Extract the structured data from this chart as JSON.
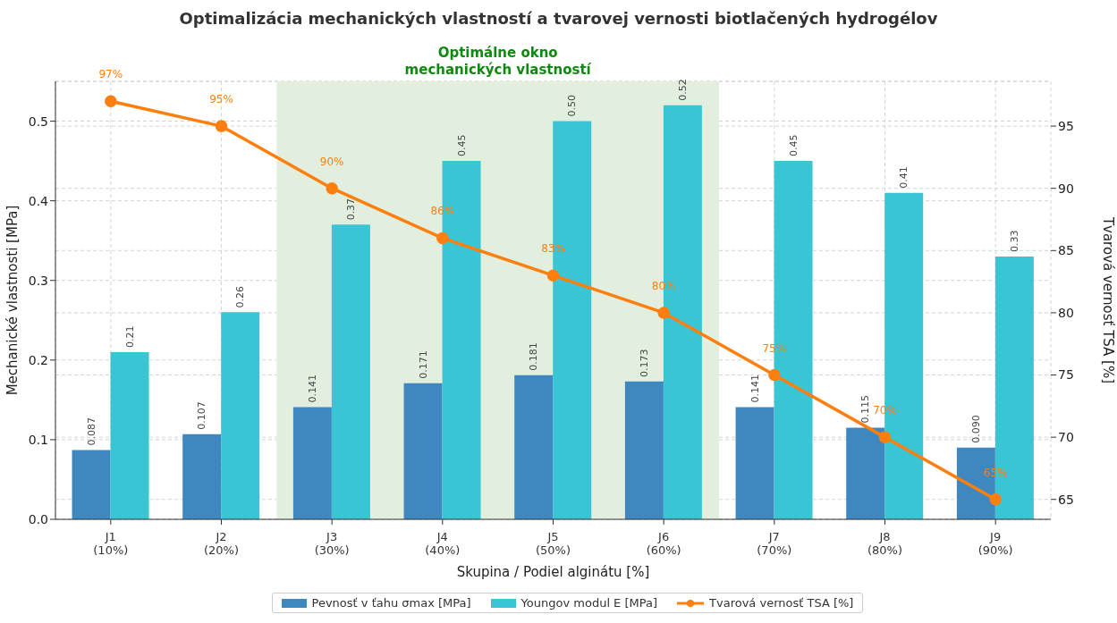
{
  "chart_data": {
    "type": "bar",
    "title": "Optimalizácia mechanických vlastností a tvarovej vernosti biotlačených hydrogélov",
    "xlabel": "Skupina / Podiel alginátu [%]",
    "ylabel": "Mechanické vlastnosti [MPa]",
    "y2label": "Tvarová vernosť TSA [%]",
    "categories": [
      "J1\n(10%)",
      "J2\n(20%)",
      "J3\n(30%)",
      "J4\n(40%)",
      "J5\n(50%)",
      "J6\n(60%)",
      "J7\n(70%)",
      "J8\n(80%)",
      "J9\n(90%)"
    ],
    "series": [
      {
        "name": "Pevnosť v ťahu σmax [MPa]",
        "color": "#3f87bf",
        "values": [
          0.087,
          0.107,
          0.141,
          0.171,
          0.181,
          0.173,
          0.141,
          0.115,
          0.09
        ],
        "value_labels": [
          "0.087",
          "0.107",
          "0.141",
          "0.171",
          "0.181",
          "0.173",
          "0.141",
          "0.115",
          "0.090"
        ]
      },
      {
        "name": "Youngov modul E [MPa]",
        "color": "#3ac5d5",
        "values": [
          0.21,
          0.26,
          0.37,
          0.45,
          0.5,
          0.52,
          0.45,
          0.41,
          0.33
        ],
        "value_labels": [
          "0.21",
          "0.26",
          "0.37",
          "0.45",
          "0.50",
          "0.52",
          "0.45",
          "0.41",
          "0.33"
        ]
      },
      {
        "name": "Tvarová vernosť TSA [%]",
        "type": "line",
        "axis": "y2",
        "color": "#ff7f0e",
        "marker": "circle",
        "line_style": "solid",
        "values": [
          97,
          95,
          90,
          86,
          83,
          80,
          75,
          70,
          65
        ],
        "value_labels": [
          "97%",
          "95%",
          "90%",
          "86%",
          "83%",
          "80%",
          "75%",
          "70%",
          "65%"
        ]
      }
    ],
    "ylim": [
      0,
      0.55
    ],
    "yticks": [
      {
        "value": 0,
        "label": "0.0"
      },
      0.1,
      0.2,
      0.3,
      0.4,
      0.5
    ],
    "y2lim": [
      63.4,
      98.6
    ],
    "y2ticks": [
      65,
      70,
      75,
      80,
      85,
      90,
      95
    ],
    "bands": [
      {
        "axis": "x",
        "from": "J3\n(30%)",
        "to": "J6\n(60%)",
        "label": "Optimálne okno\nmechanických vlastností",
        "color": "#e2efdf"
      }
    ],
    "grid": true,
    "legend": "bottom"
  }
}
